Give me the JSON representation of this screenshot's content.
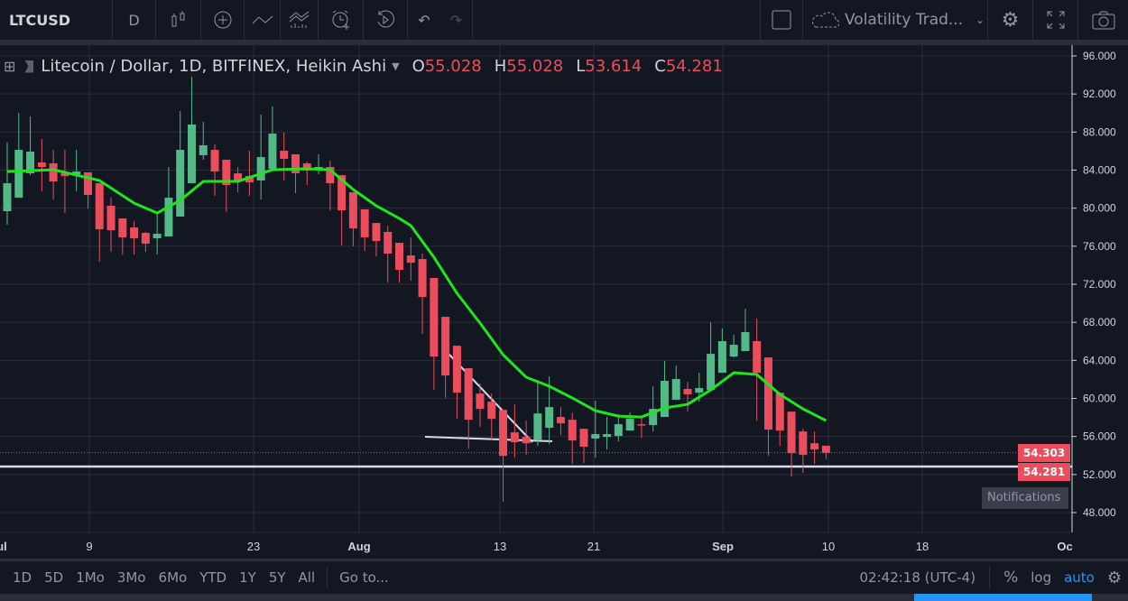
{
  "toolbar": {
    "symbol": "LTCUSD",
    "interval": "D",
    "indicator_template": "Volatility Trad..."
  },
  "legend": {
    "title": "Litecoin / Dollar, 1D, BITFINEX, Heikin Ashi",
    "o_label": "O",
    "o": "55.028",
    "h_label": "H",
    "h": "55.028",
    "l_label": "L",
    "l": "53.614",
    "c_label": "C",
    "c": "54.281"
  },
  "price_labels": {
    "last": "54.303",
    "line": "54.281"
  },
  "bottom": {
    "ranges": [
      "1D",
      "5D",
      "1Mo",
      "3Mo",
      "6Mo",
      "YTD",
      "1Y",
      "5Y",
      "All"
    ],
    "goto": "Go to...",
    "time": "02:42:18 (UTC-4)",
    "percent": "%",
    "log": "log",
    "auto": "auto"
  },
  "notifications": "Notifications",
  "colors": {
    "bg": "#131722",
    "up": "#53b987",
    "down": "#eb4d5c",
    "ma": "#1fe51f",
    "grid": "#2a2e39",
    "accent": "#2196f3"
  },
  "chart_data": {
    "type": "candlestick",
    "title": "Litecoin / Dollar, 1D, BITFINEX, Heikin Ashi",
    "ylim": [
      46,
      97
    ],
    "yticks": [
      "96.000",
      "92.000",
      "88.000",
      "84.000",
      "80.000",
      "76.000",
      "72.000",
      "68.000",
      "64.000",
      "60.000",
      "56.000",
      "52.000",
      "48.000"
    ],
    "xticks": [
      {
        "label": "ul",
        "day": 0
      },
      {
        "label": "9",
        "day": 7
      },
      {
        "label": "23",
        "day": 21
      },
      {
        "label": "Aug",
        "day": 30
      },
      {
        "label": "13",
        "day": 42
      },
      {
        "label": "21",
        "day": 50
      },
      {
        "label": "Sep",
        "day": 61
      },
      {
        "label": "10",
        "day": 70
      },
      {
        "label": "18",
        "day": 78
      },
      {
        "label": "Oc",
        "day": 91
      }
    ],
    "ohlc": [
      [
        79.68,
        86.89,
        78.26,
        82.62
      ],
      [
        81.1,
        90.02,
        81.1,
        86.13
      ],
      [
        83.66,
        89.64,
        83.47,
        85.94
      ],
      [
        84.8,
        87.27,
        81.77,
        84.33
      ],
      [
        84.71,
        86.13,
        80.91,
        82.81
      ],
      [
        83.66,
        86.13,
        79.49,
        83.38
      ],
      [
        83.57,
        86.13,
        81.77,
        83.85
      ],
      [
        83.76,
        83.76,
        79.96,
        81.39
      ],
      [
        82.62,
        82.62,
        74.36,
        77.78
      ],
      [
        80.25,
        81.1,
        75.41,
        77.68
      ],
      [
        78.92,
        78.92,
        75.12,
        76.93
      ],
      [
        77.97,
        78.63,
        75.12,
        76.83
      ],
      [
        77.4,
        77.5,
        75.41,
        76.26
      ],
      [
        76.83,
        79.39,
        75.12,
        77.31
      ],
      [
        77.02,
        84.33,
        77.02,
        81.1
      ],
      [
        79.11,
        90.21,
        79.11,
        86.13
      ],
      [
        82.62,
        93.82,
        82.62,
        88.79
      ],
      [
        85.56,
        89.07,
        85.09,
        86.61
      ],
      [
        86.13,
        86.7,
        81.29,
        83.85
      ],
      [
        85.09,
        85.09,
        79.58,
        82.43
      ],
      [
        83.66,
        84.33,
        81.67,
        82.81
      ],
      [
        83.38,
        86.04,
        81.29,
        82.71
      ],
      [
        82.91,
        89.83,
        80.91,
        85.37
      ],
      [
        84.14,
        90.69,
        84.14,
        87.84
      ],
      [
        86.04,
        87.93,
        82.91,
        85.18
      ],
      [
        85.66,
        85.66,
        81.58,
        83.66
      ],
      [
        84.71,
        84.9,
        82.43,
        83.95
      ],
      [
        84.04,
        85.66,
        83.57,
        84.33
      ],
      [
        84.33,
        84.99,
        79.77,
        82.62
      ],
      [
        83.47,
        83.47,
        76.07,
        79.77
      ],
      [
        81.67,
        81.67,
        75.98,
        77.88
      ],
      [
        79.87,
        79.87,
        75.5,
        76.93
      ],
      [
        78.44,
        78.44,
        74.93,
        76.55
      ],
      [
        77.5,
        78.16,
        72.18,
        75.22
      ],
      [
        76.36,
        76.36,
        72.18,
        73.51
      ],
      [
        75.03,
        76.93,
        72.37,
        74.27
      ],
      [
        74.65,
        75.22,
        66.77,
        70.66
      ],
      [
        72.66,
        72.66,
        60.89,
        64.4
      ],
      [
        68.58,
        68.58,
        60.03,
        62.41
      ],
      [
        65.54,
        65.54,
        57.85,
        60.6
      ],
      [
        63.17,
        63.17,
        54.72,
        57.76
      ],
      [
        60.51,
        61.56,
        57.0,
        58.9
      ],
      [
        59.66,
        60.51,
        55.67,
        57.85
      ],
      [
        58.8,
        58.8,
        49.12,
        53.96
      ],
      [
        56.43,
        59.37,
        53.77,
        55.39
      ],
      [
        55.95,
        57.66,
        54.06,
        55.29
      ],
      [
        55.67,
        61.94,
        55.0,
        58.42
      ],
      [
        56.91,
        62.32,
        55.19,
        59.09
      ],
      [
        58.05,
        59.09,
        56.14,
        57.38
      ],
      [
        57.76,
        58.52,
        53.11,
        55.58
      ],
      [
        56.81,
        56.81,
        53.21,
        54.92
      ],
      [
        55.78,
        59.76,
        53.77,
        56.25
      ],
      [
        55.95,
        58.05,
        54.63,
        56.25
      ],
      [
        56.05,
        58.33,
        55.48,
        57.29
      ],
      [
        56.62,
        58.52,
        56.62,
        57.86
      ],
      [
        57.29,
        58.14,
        55.87,
        57.2
      ],
      [
        57.2,
        61.28,
        56.53,
        58.9
      ],
      [
        58.05,
        63.94,
        58.05,
        61.85
      ],
      [
        59.86,
        63.46,
        59.86,
        62.04
      ],
      [
        61.0,
        61.75,
        58.61,
        60.43
      ],
      [
        60.6,
        62.7,
        59.66,
        61.09
      ],
      [
        60.89,
        68.01,
        60.89,
        64.69
      ],
      [
        62.7,
        67.35,
        62.7,
        66.02
      ],
      [
        64.4,
        66.69,
        64.31,
        65.64
      ],
      [
        64.98,
        69.44,
        64.98,
        66.97
      ],
      [
        66.02,
        68.39,
        57.66,
        62.7
      ],
      [
        64.31,
        64.31,
        53.96,
        56.72
      ],
      [
        60.6,
        60.6,
        55.0,
        56.62
      ],
      [
        58.61,
        58.61,
        51.79,
        54.25
      ],
      [
        56.53,
        56.81,
        52.17,
        54.06
      ],
      [
        55.29,
        56.53,
        53.11,
        54.63
      ],
      [
        55.028,
        55.028,
        53.614,
        54.281
      ]
    ],
    "ma": [
      [
        0,
        83.85
      ],
      [
        4,
        84.04
      ],
      [
        8,
        82.91
      ],
      [
        11,
        80.53
      ],
      [
        13,
        79.49
      ],
      [
        15,
        80.82
      ],
      [
        17,
        82.81
      ],
      [
        20,
        82.81
      ],
      [
        23,
        84.04
      ],
      [
        26,
        84.14
      ],
      [
        28,
        84.04
      ],
      [
        30,
        81.96
      ],
      [
        32,
        80.25
      ],
      [
        34,
        78.92
      ],
      [
        35,
        78.16
      ],
      [
        37,
        74.84
      ],
      [
        39,
        71.05
      ],
      [
        41,
        67.92
      ],
      [
        43,
        64.59
      ],
      [
        45,
        62.23
      ],
      [
        47,
        61.28
      ],
      [
        49,
        60.05
      ],
      [
        51,
        58.71
      ],
      [
        53,
        58.14
      ],
      [
        55,
        58.05
      ],
      [
        57,
        59.0
      ],
      [
        59,
        59.38
      ],
      [
        61,
        60.89
      ],
      [
        63,
        62.7
      ],
      [
        65,
        62.51
      ],
      [
        67,
        60.43
      ],
      [
        69,
        58.9
      ],
      [
        71,
        57.67
      ]
    ],
    "horizontal_line": 52.84,
    "last_price_line": 54.303
  }
}
